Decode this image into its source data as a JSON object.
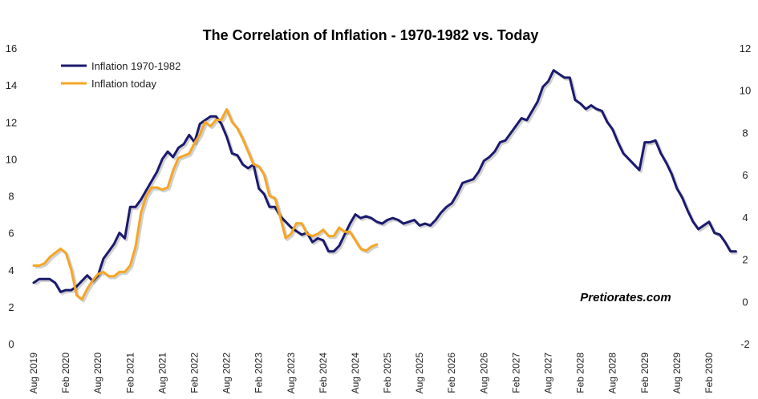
{
  "chart_data": {
    "type": "line",
    "title": "The Correlation of Inflation - 1970-1982 vs. Today",
    "watermark": "Pretiorates.com",
    "x_labels": [
      "Aug 2019",
      "Feb 2020",
      "Aug 2020",
      "Feb 2021",
      "Aug 2021",
      "Feb 2022",
      "Aug 2022",
      "Feb 2023",
      "Aug 2023",
      "Feb 2024",
      "Aug 2024",
      "Feb 2025",
      "Aug 2025",
      "Feb 2026",
      "Aug 2026",
      "Feb 2027",
      "Aug 2027",
      "Feb 2028",
      "Aug 2028",
      "Feb 2029",
      "Aug 2029",
      "Feb 2030"
    ],
    "y_left": {
      "min": 0,
      "max": 16,
      "ticks": [
        "0",
        "2",
        "4",
        "6",
        "8",
        "10",
        "12",
        "14",
        "16"
      ]
    },
    "y_right": {
      "min": -2,
      "max": 12,
      "ticks": [
        "-2",
        "0",
        "2",
        "4",
        "6",
        "8",
        "10",
        "12"
      ]
    },
    "legend_position": "top-left",
    "series": [
      {
        "name": "Inflation 1970-1982",
        "color": "#1a1a6e",
        "axis": "left",
        "x_step_months": 1,
        "values": [
          3.3,
          3.5,
          3.5,
          3.5,
          3.3,
          2.8,
          2.9,
          2.9,
          3.1,
          3.4,
          3.7,
          3.4,
          3.7,
          4.6,
          5.0,
          5.4,
          6.0,
          5.7,
          7.4,
          7.4,
          7.8,
          8.3,
          8.8,
          9.3,
          10.0,
          10.4,
          10.1,
          10.6,
          10.8,
          11.3,
          10.9,
          11.9,
          12.1,
          12.3,
          12.3,
          11.9,
          11.2,
          10.3,
          10.2,
          9.7,
          9.5,
          9.7,
          8.4,
          8.1,
          7.4,
          7.4,
          6.9,
          6.6,
          6.3,
          6.1,
          5.9,
          6.0,
          5.5,
          5.7,
          5.6,
          5.0,
          5.0,
          5.3,
          5.9,
          6.5,
          7.0,
          6.8,
          6.9,
          6.8,
          6.6,
          6.5,
          6.7,
          6.8,
          6.7,
          6.5,
          6.6,
          6.7,
          6.4,
          6.5,
          6.4,
          6.7,
          7.1,
          7.4,
          7.6,
          8.1,
          8.7,
          8.8,
          8.9,
          9.3,
          9.9,
          10.1,
          10.4,
          10.9,
          11.0,
          11.4,
          11.8,
          12.2,
          12.1,
          12.6,
          13.1,
          13.9,
          14.2,
          14.8,
          14.6,
          14.4,
          14.4,
          13.2,
          13.0,
          12.7,
          12.9,
          12.7,
          12.6,
          12.0,
          11.6,
          10.9,
          10.3,
          10.0,
          9.7,
          9.4,
          10.9,
          10.9,
          11.0,
          10.3,
          9.8,
          9.2,
          8.4,
          7.9,
          7.2,
          6.6,
          6.2,
          6.4,
          6.6,
          6.0,
          5.9,
          5.5,
          5.0,
          5.0
        ]
      },
      {
        "name": "Inflation today",
        "color": "#f5a623",
        "axis": "right",
        "x_step_months": 1,
        "values": [
          1.7,
          1.7,
          1.8,
          2.1,
          2.3,
          2.5,
          2.3,
          1.5,
          0.3,
          0.1,
          0.6,
          1.0,
          1.3,
          1.4,
          1.2,
          1.2,
          1.4,
          1.4,
          1.7,
          2.6,
          4.2,
          5.0,
          5.4,
          5.4,
          5.3,
          5.4,
          6.2,
          6.8,
          6.9,
          7.0,
          7.5,
          7.9,
          8.5,
          8.3,
          8.6,
          8.6,
          9.1,
          8.5,
          8.2,
          7.7,
          7.1,
          6.5,
          6.4,
          6.0,
          5.0,
          4.9,
          4.0,
          3.0,
          3.2,
          3.7,
          3.7,
          3.2,
          3.1,
          3.2,
          3.4,
          3.1,
          3.1,
          3.5,
          3.3,
          3.3,
          2.9,
          2.5,
          2.4,
          2.6,
          2.7
        ]
      }
    ]
  }
}
